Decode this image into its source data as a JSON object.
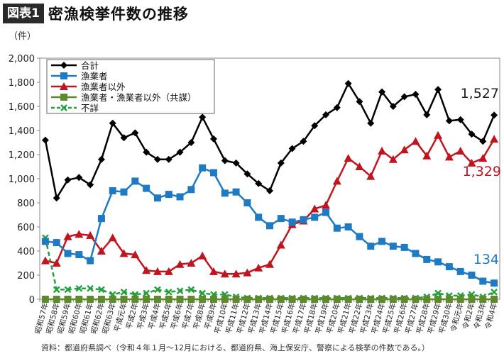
{
  "header": {
    "badge": "図表1",
    "title": "密漁検挙件数の推移"
  },
  "unit_label": "（件）",
  "source_note": "資料：都道府県調べ（令和４年１月～12月における、都道府県、海上保安庁、警察による検挙の件数である。）",
  "chart_data": {
    "type": "line",
    "title": "密漁検挙件数の推移",
    "xlabel": "",
    "ylabel": "（件）",
    "ylim": [
      0,
      2000
    ],
    "yticks": [
      0,
      200,
      400,
      600,
      800,
      1000,
      1200,
      1400,
      1600,
      1800,
      2000
    ],
    "ytick_labels": [
      "0",
      "200",
      "400",
      "600",
      "800",
      "1,000",
      "1,200",
      "1,400",
      "1,600",
      "1,800",
      "2,000"
    ],
    "grid": false,
    "legend_position": "top-left",
    "categories": [
      "昭和57年",
      "昭和58年",
      "昭和59年",
      "昭和60年",
      "昭和61年",
      "昭和62年",
      "昭和63年",
      "平成元年",
      "平成2年",
      "平成3年",
      "平成4年",
      "平成5年",
      "平成6年",
      "平成7年",
      "平成8年",
      "平成9年",
      "平成10年",
      "平成11年",
      "平成12年",
      "平成13年",
      "平成14年",
      "平成15年",
      "平成16年",
      "平成17年",
      "平成18年",
      "平成19年",
      "平成20年",
      "平成21年",
      "平成22年",
      "平成23年",
      "平成24年",
      "平成25年",
      "平成26年",
      "平成27年",
      "平成28年",
      "平成29年",
      "平成30年",
      "令和元年",
      "令和2年",
      "令和3年",
      "令和4年"
    ],
    "series": [
      {
        "name": "合計",
        "color": "#000000",
        "marker": "diamond",
        "dashed": false,
        "values": [
          1320,
          840,
          990,
          1010,
          950,
          1160,
          1460,
          1340,
          1380,
          1220,
          1160,
          1160,
          1220,
          1300,
          1510,
          1330,
          1150,
          1130,
          1040,
          960,
          900,
          1130,
          1250,
          1310,
          1440,
          1530,
          1590,
          1790,
          1640,
          1460,
          1720,
          1600,
          1680,
          1700,
          1530,
          1740,
          1480,
          1490,
          1370,
          1310,
          1527
        ]
      },
      {
        "name": "漁業者",
        "color": "#1f7ac4",
        "marker": "square",
        "dashed": false,
        "values": [
          480,
          470,
          380,
          370,
          320,
          670,
          900,
          890,
          980,
          920,
          840,
          870,
          850,
          910,
          1090,
          1050,
          880,
          890,
          800,
          680,
          610,
          670,
          640,
          660,
          680,
          720,
          590,
          600,
          520,
          440,
          480,
          440,
          430,
          380,
          330,
          310,
          270,
          230,
          200,
          150,
          134
        ]
      },
      {
        "name": "漁業者以外",
        "color": "#c0141e",
        "marker": "triangle",
        "dashed": false,
        "values": [
          320,
          300,
          520,
          540,
          530,
          400,
          510,
          380,
          370,
          240,
          230,
          230,
          290,
          300,
          360,
          230,
          210,
          210,
          220,
          260,
          290,
          450,
          620,
          650,
          750,
          780,
          980,
          1170,
          1100,
          1020,
          1230,
          1160,
          1240,
          1310,
          1190,
          1360,
          1180,
          1230,
          1130,
          1170,
          1329
        ]
      },
      {
        "name": "漁業者・漁業者以外（共謀）",
        "color": "#5e8a2c",
        "marker": "square",
        "dashed": false,
        "values": [
          0,
          0,
          0,
          0,
          0,
          0,
          0,
          0,
          0,
          0,
          0,
          0,
          0,
          0,
          0,
          0,
          0,
          0,
          0,
          0,
          0,
          0,
          0,
          0,
          0,
          0,
          0,
          0,
          0,
          0,
          0,
          0,
          0,
          0,
          0,
          0,
          0,
          0,
          0,
          0,
          0
        ]
      },
      {
        "name": "不詳",
        "color": "#22a03c",
        "marker": "x",
        "dashed": true,
        "values": [
          510,
          80,
          80,
          90,
          90,
          80,
          40,
          60,
          40,
          50,
          80,
          60,
          70,
          80,
          50,
          40,
          40,
          20,
          10,
          10,
          10,
          10,
          10,
          10,
          10,
          10,
          10,
          10,
          10,
          10,
          10,
          10,
          10,
          10,
          20,
          50,
          30,
          30,
          40,
          20,
          60
        ]
      }
    ],
    "annotations": [
      {
        "series": "合計",
        "text": "1,527",
        "color": "#222222"
      },
      {
        "series": "漁業者以外",
        "text": "1,329",
        "color": "#c0141e"
      },
      {
        "series": "漁業者",
        "text": "134",
        "color": "#1f7ac4"
      }
    ]
  }
}
